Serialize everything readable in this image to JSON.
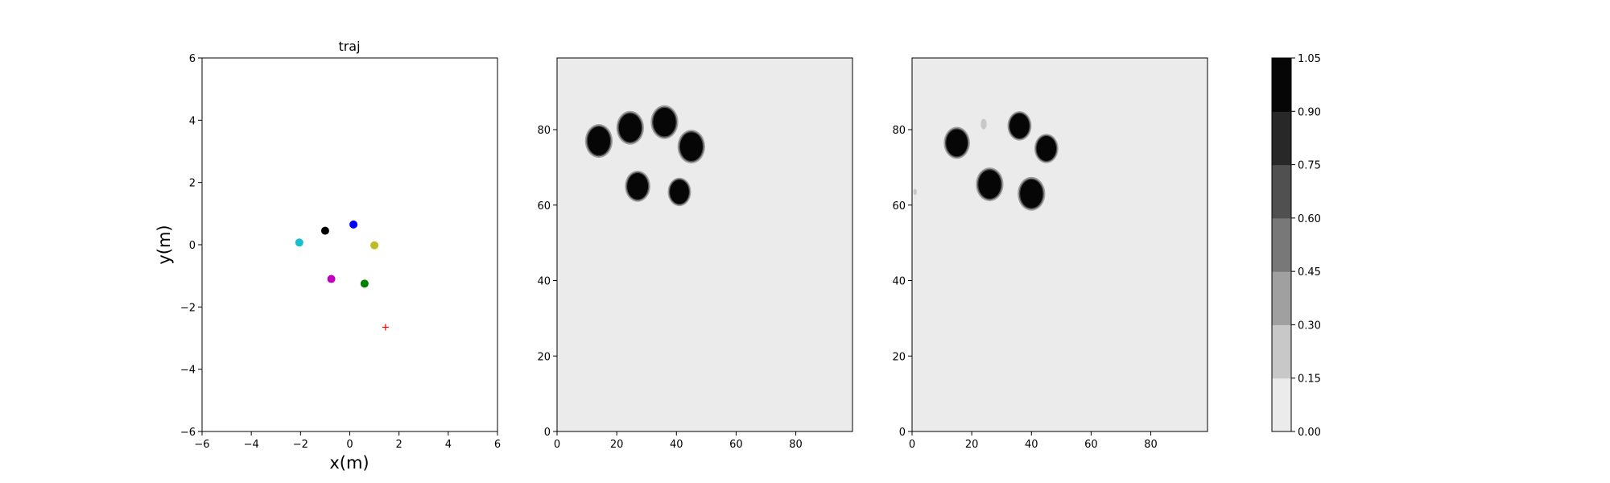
{
  "chart_data": [
    {
      "type": "scatter",
      "title": "traj",
      "xlabel": "x(m)",
      "ylabel": "y(m)",
      "xlim": [
        -6,
        6
      ],
      "ylim": [
        -6,
        6
      ],
      "xticks": [
        "−6",
        "−4",
        "−2",
        "0",
        "2",
        "4",
        "6"
      ],
      "yticks": [
        "−6",
        "−4",
        "−2",
        "0",
        "2",
        "4",
        "6"
      ],
      "grid": false,
      "points": [
        {
          "x": -2.05,
          "y": 0.07,
          "color": "#17becf"
        },
        {
          "x": -1.0,
          "y": 0.45,
          "color": "#000000"
        },
        {
          "x": 0.15,
          "y": 0.65,
          "color": "#0000ff"
        },
        {
          "x": 1.0,
          "y": -0.02,
          "color": "#bcbd22"
        },
        {
          "x": -0.75,
          "y": -1.1,
          "color": "#bf00bf"
        },
        {
          "x": 0.6,
          "y": -1.25,
          "color": "#008000"
        }
      ],
      "goal": {
        "x": 1.45,
        "y": -2.65,
        "marker": "+",
        "color": "#ff0000"
      }
    },
    {
      "type": "heatmap",
      "xlim": [
        0,
        99
      ],
      "ylim": [
        0,
        99
      ],
      "xticks": [
        "0",
        "20",
        "40",
        "60",
        "80"
      ],
      "yticks": [
        "0",
        "20",
        "40",
        "60",
        "80"
      ],
      "background_level": 0.0,
      "blobs": [
        {
          "x": 14,
          "y": 77,
          "r": 3.8,
          "level": 1.0
        },
        {
          "x": 24.5,
          "y": 80.5,
          "r": 3.8,
          "level": 1.0
        },
        {
          "x": 36,
          "y": 82,
          "r": 3.8,
          "level": 1.0
        },
        {
          "x": 45,
          "y": 75.5,
          "r": 3.8,
          "level": 1.0
        },
        {
          "x": 27,
          "y": 65,
          "r": 3.5,
          "level": 1.0
        },
        {
          "x": 41,
          "y": 63.5,
          "r": 3.2,
          "level": 1.0
        }
      ]
    },
    {
      "type": "heatmap",
      "xlim": [
        0,
        99
      ],
      "ylim": [
        0,
        99
      ],
      "xticks": [
        "0",
        "20",
        "40",
        "60",
        "80"
      ],
      "yticks": [
        "0",
        "20",
        "40",
        "60",
        "80"
      ],
      "background_level": 0.0,
      "blobs": [
        {
          "x": 15,
          "y": 76.5,
          "r": 3.6,
          "level": 1.0
        },
        {
          "x": 36,
          "y": 81,
          "r": 3.3,
          "level": 1.0
        },
        {
          "x": 45,
          "y": 75,
          "r": 3.3,
          "level": 1.0
        },
        {
          "x": 26,
          "y": 65.5,
          "r": 3.8,
          "level": 1.0
        },
        {
          "x": 40,
          "y": 63,
          "r": 3.8,
          "level": 1.0
        },
        {
          "x": 24,
          "y": 81.5,
          "r": 1.0,
          "level": 0.25
        },
        {
          "x": 1,
          "y": 63.5,
          "r": 0.6,
          "level": 0.2
        }
      ]
    }
  ],
  "colorbar": {
    "levels": [
      0.0,
      0.15,
      0.3,
      0.45,
      0.6,
      0.75,
      0.9,
      1.05
    ],
    "tick_labels": [
      "0.00",
      "0.15",
      "0.30",
      "0.45",
      "0.60",
      "0.75",
      "0.90",
      "1.05"
    ],
    "colors": [
      "#ebebeb",
      "#c8c8c8",
      "#a0a0a0",
      "#787878",
      "#505050",
      "#282828",
      "#060606"
    ]
  }
}
